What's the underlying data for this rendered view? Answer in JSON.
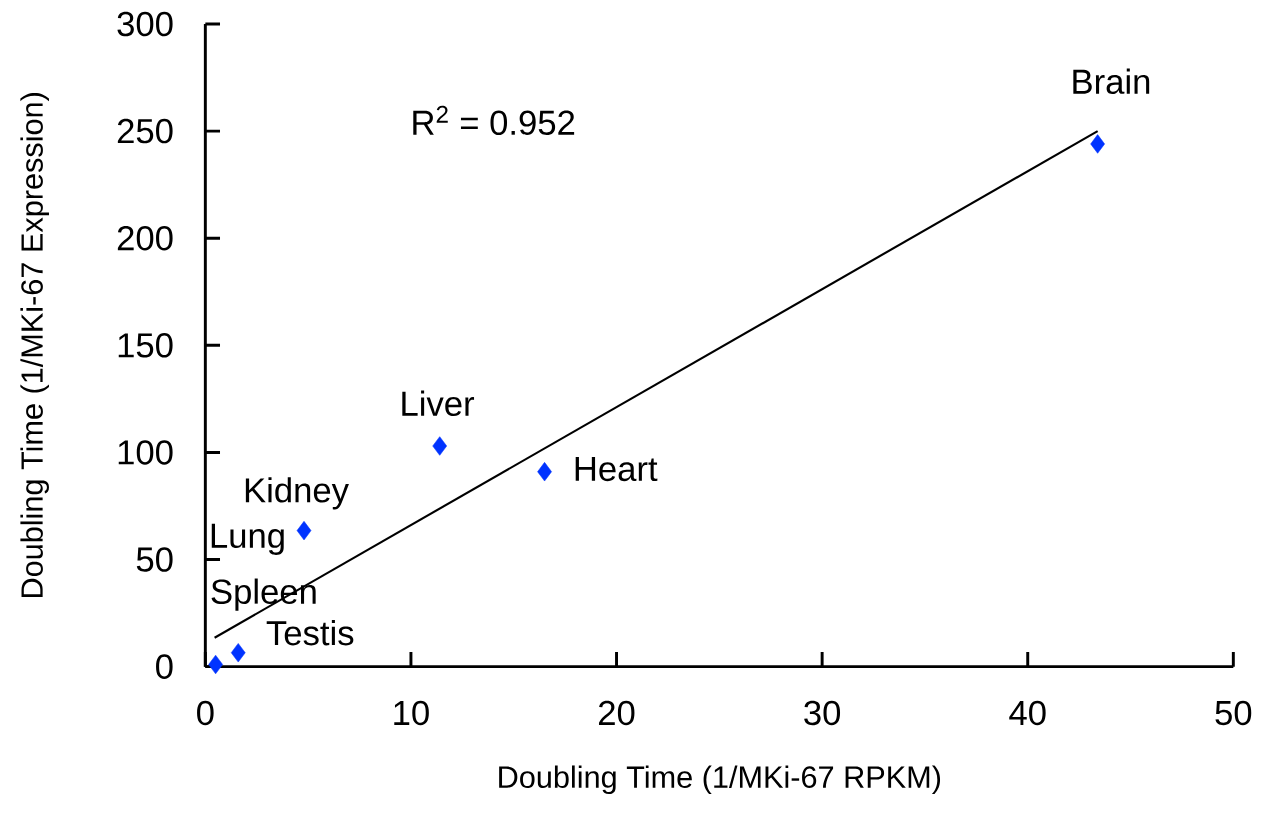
{
  "chart_data": {
    "type": "scatter",
    "xlabel": "Doubling Time (1/MKi-67 RPKM)",
    "ylabel": "Doubling Time (1/MKi-67 Expression)",
    "xlim": [
      0,
      50
    ],
    "xticks": [
      0,
      10,
      20,
      30,
      40,
      50
    ],
    "ylim": [
      0,
      300
    ],
    "yticks": [
      0,
      50,
      100,
      150,
      200,
      250,
      300
    ],
    "series": [
      {
        "color": "#0033ff",
        "marker": "diamond",
        "x": [
          43.4,
          11.4,
          16.5,
          4.8,
          0.5,
          1.6
        ],
        "values": [
          244,
          103,
          91,
          63.5,
          1,
          6.5
        ]
      },
      {
        "type": "line",
        "color": "#000000",
        "marker": "none",
        "line_style": "solid",
        "x": [
          0.45,
          43.4
        ],
        "values": [
          13.5,
          250
        ]
      }
    ],
    "annotations": [
      {
        "text": "Brain",
        "x": 43.4,
        "y": 244
      },
      {
        "text": "Liver",
        "x": 11.4,
        "y": 103
      },
      {
        "text": "Heart",
        "x": 16.5,
        "y": 91
      },
      {
        "text": "Kidney",
        "x": 4.8,
        "y": 63.5
      },
      "Lung",
      "Spleen",
      {
        "text": "Testis",
        "x": 1.6,
        "y": 6.5
      },
      "R$^{2}$ = 0.952"
    ]
  }
}
